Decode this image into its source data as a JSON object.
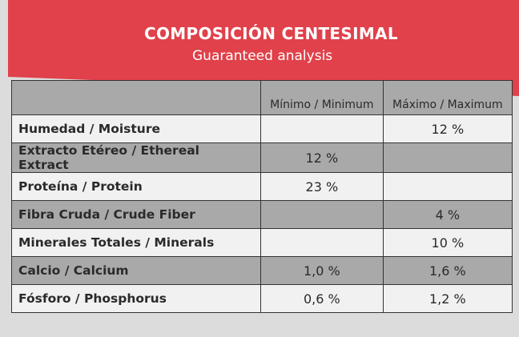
{
  "header": {
    "title": "COMPOSICIÓN CENTESIMAL",
    "subtitle": "Guaranteed analysis"
  },
  "table": {
    "columns": [
      null,
      "Mínimo / Minimum",
      "Máximo / Maximum"
    ],
    "rows": [
      [
        "Humedad / Moisture",
        null,
        "12 %"
      ],
      [
        "Extracto Etéreo / Ethereal Extract",
        "12 %",
        null
      ],
      [
        "Proteína / Protein",
        "23 %",
        null
      ],
      [
        "Fibra Cruda / Crude Fiber",
        null,
        "4 %"
      ],
      [
        "Minerales Totales / Minerals",
        null,
        "10 %"
      ],
      [
        "Calcio / Calcium",
        "1,0 %",
        "1,6 %"
      ],
      [
        "Fósforo / Phosphorus",
        "0,6 %",
        "1,2 %"
      ]
    ]
  }
}
